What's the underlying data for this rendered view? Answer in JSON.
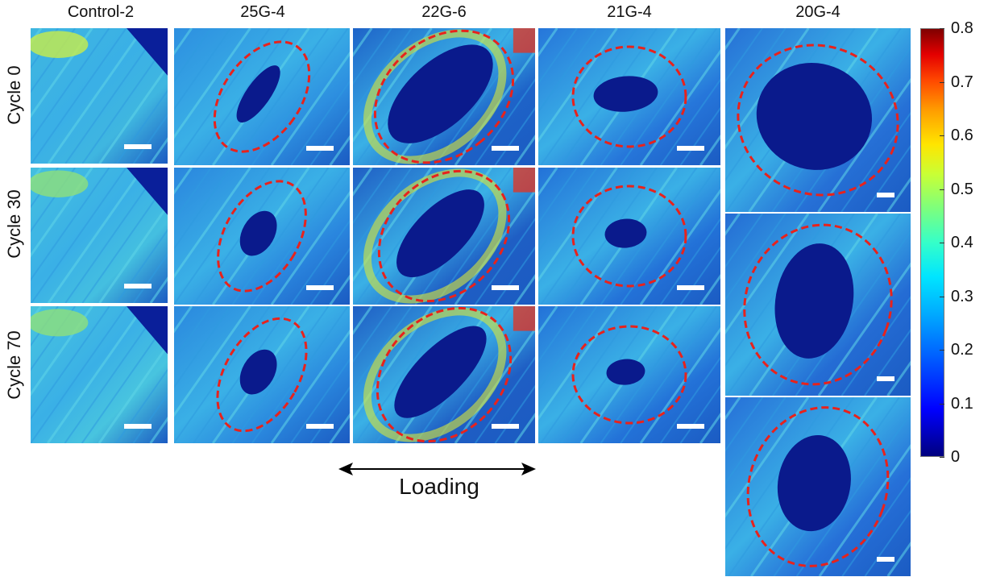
{
  "columns": [
    "Control-2",
    "25G-4",
    "22G-6",
    "21G-4",
    "20G-4"
  ],
  "rows": [
    "Cycle 0",
    "Cycle 30",
    "Cycle 70"
  ],
  "colorbar": {
    "ticks": [
      "0.8",
      "0.7",
      "0.6",
      "0.5",
      "0.4",
      "0.3",
      "0.2",
      "0.1",
      "0"
    ],
    "min": 0,
    "max": 0.8,
    "colormap": "jet"
  },
  "loading_label": "Loading",
  "colors": {
    "annotation_ellipse": "#e8221c",
    "background_tissue": "#1f7ad6",
    "scale_bar": "#ffffff"
  }
}
